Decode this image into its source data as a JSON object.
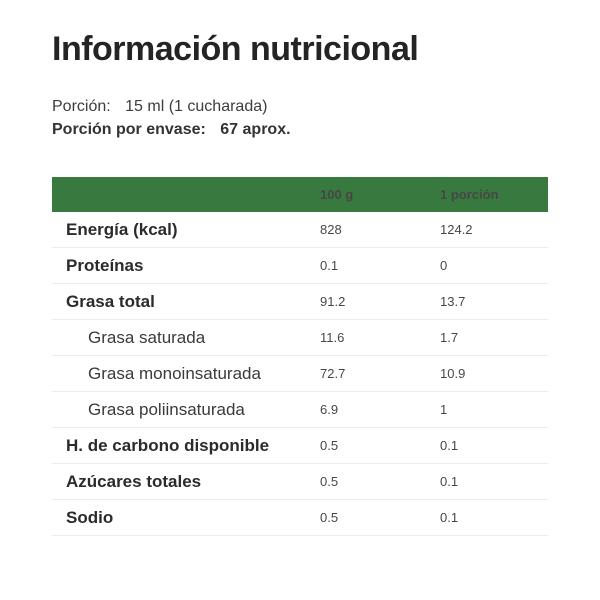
{
  "header": {
    "title": "Información nutricional",
    "serving_label": "Porción:",
    "serving_value": "15 ml (1 cucharada)",
    "per_container_label": "Porción por envase:",
    "per_container_value": "67 aprox."
  },
  "table": {
    "columns": [
      "100 g",
      "1 porción"
    ],
    "rows": [
      {
        "label": "Energía (kcal)",
        "per_100g": "828",
        "per_serving": "124.2",
        "indent": false
      },
      {
        "label": "Proteínas",
        "per_100g": "0.1",
        "per_serving": "0",
        "indent": false
      },
      {
        "label": "Grasa total",
        "per_100g": "91.2",
        "per_serving": "13.7",
        "indent": false
      },
      {
        "label": "Grasa saturada",
        "per_100g": "11.6",
        "per_serving": "1.7",
        "indent": true
      },
      {
        "label": "Grasa monoinsaturada",
        "per_100g": "72.7",
        "per_serving": "10.9",
        "indent": true
      },
      {
        "label": "Grasa poliinsaturada",
        "per_100g": "6.9",
        "per_serving": "1",
        "indent": true
      },
      {
        "label": "H. de carbono disponible",
        "per_100g": "0.5",
        "per_serving": "0.1",
        "indent": false
      },
      {
        "label": "Azúcares totales",
        "per_100g": "0.5",
        "per_serving": "0.1",
        "indent": false
      },
      {
        "label": "Sodio",
        "per_100g": "0.5",
        "per_serving": "0.1",
        "indent": false
      }
    ]
  },
  "colors": {
    "header_bg": "#38793f",
    "header_text": "#ffffff",
    "divider": "#ececec",
    "title_text": "#242424"
  }
}
